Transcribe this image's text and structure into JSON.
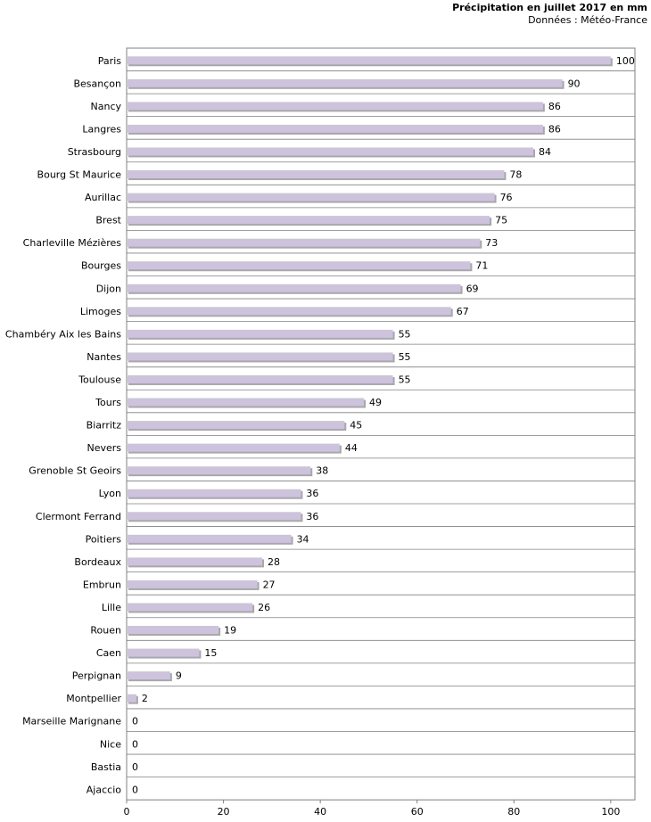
{
  "chart_data": {
    "type": "bar",
    "orientation": "horizontal",
    "title": "Précipitation en juillet 2017 en mm",
    "subtitle": "Données : Météo-France",
    "xlabel": "",
    "ylabel": "",
    "xlim": [
      0,
      105
    ],
    "xticks": [
      0,
      20,
      40,
      60,
      80,
      100
    ],
    "bar_color": "#cdc3dc",
    "bar_shadow": "#a8a8a8",
    "grid_color": "#808080",
    "categories": [
      "Paris",
      "Besançon",
      "Nancy",
      "Langres",
      "Strasbourg",
      "Bourg St Maurice",
      "Aurillac",
      "Brest",
      "Charleville Mézières",
      "Bourges",
      "Dijon",
      "Limoges",
      "Chambéry Aix les Bains",
      "Nantes",
      "Toulouse",
      "Tours",
      "Biarritz",
      "Nevers",
      "Grenoble St Geoirs",
      "Lyon",
      "Clermont Ferrand",
      "Poitiers",
      "Bordeaux",
      "Embrun",
      "Lille",
      "Rouen",
      "Caen",
      "Perpignan",
      "Montpellier",
      "Marseille Marignane",
      "Nice",
      "Bastia",
      "Ajaccio"
    ],
    "values": [
      100,
      90,
      86,
      86,
      84,
      78,
      76,
      75,
      73,
      71,
      69,
      67,
      55,
      55,
      55,
      49,
      45,
      44,
      38,
      36,
      36,
      34,
      28,
      27,
      26,
      19,
      15,
      9,
      2,
      0,
      0,
      0,
      0
    ]
  }
}
